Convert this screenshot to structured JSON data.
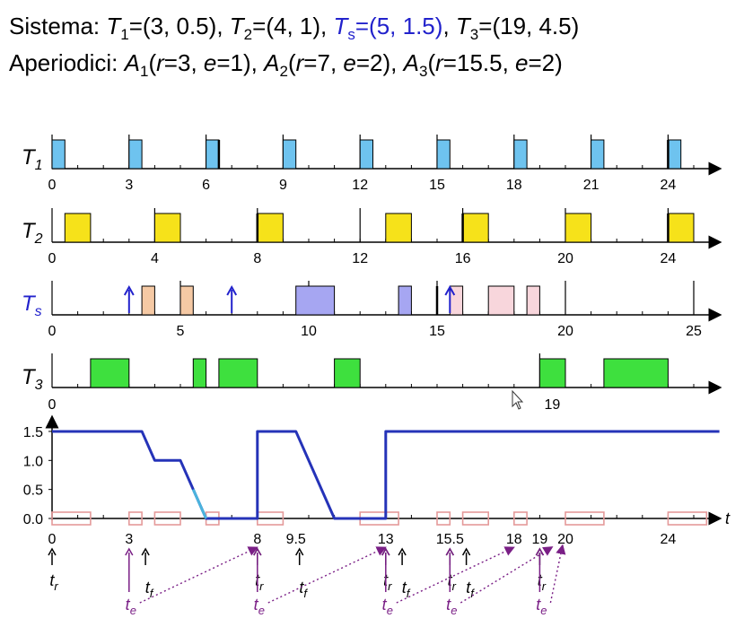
{
  "header": {
    "system_label": "Sistema:",
    "aperiodic_label": "Aperiodici:",
    "tasks": [
      {
        "name": "T",
        "sub": "1",
        "params": "=(3, 0.5)",
        "sep": ",",
        "highlight": false
      },
      {
        "name": "T",
        "sub": "2",
        "params": "=(4, 1)",
        "sep": ",",
        "highlight": false
      },
      {
        "name": "T",
        "sub": "s",
        "params": "=(5, 1.5)",
        "sep": ",",
        "highlight": true
      },
      {
        "name": "T",
        "sub": "3",
        "params": "=(19, 4.5)",
        "sep": "",
        "highlight": false
      }
    ],
    "aperiodics": [
      {
        "name": "A",
        "sub": "1",
        "r": "3",
        "e": "1"
      },
      {
        "name": "A",
        "sub": "2",
        "r": "7",
        "e": "2"
      },
      {
        "name": "A",
        "sub": "3",
        "r": "15.5",
        "e": "2"
      }
    ]
  },
  "colors": {
    "t1": "#6ec3ef",
    "t2": "#f6e21a",
    "ts_server": "#a6a6f2",
    "ts_aperiodic": "#f5c9a4",
    "ts_aperiodic2": "#f8d6dc",
    "t3": "#3ee03e",
    "capacity": "#2533b8",
    "capacity_alt": "#4ab3dd",
    "marker_box": "#e49a9a",
    "server_label": "#2222cc",
    "server_arrow": "#2222cc",
    "te": "#7a1f86"
  },
  "rows": [
    {
      "key": "t1",
      "label": "T",
      "sub": "1",
      "label_color": "#000",
      "ticks": [
        "0",
        "3",
        "6",
        "9",
        "12",
        "15",
        "18",
        "21",
        "24"
      ],
      "tick_times": [
        0,
        3,
        6,
        9,
        12,
        15,
        18,
        21,
        24
      ],
      "releases": [
        0,
        3,
        6,
        9,
        12,
        15,
        18,
        21,
        24
      ],
      "deadlines": [
        6.5,
        24
      ],
      "jobs": [
        [
          0,
          0.5
        ],
        [
          3,
          3.5
        ],
        [
          6,
          6.5
        ],
        [
          9,
          9.5
        ],
        [
          12,
          12.5
        ],
        [
          15,
          15.5
        ],
        [
          18,
          18.5
        ],
        [
          21,
          21.5
        ],
        [
          24,
          24.5
        ]
      ]
    },
    {
      "key": "t2",
      "label": "T",
      "sub": "2",
      "label_color": "#000",
      "ticks": [
        "0",
        "4",
        "8",
        "12",
        "16",
        "20",
        "24"
      ],
      "tick_times": [
        0,
        4,
        8,
        12,
        16,
        20,
        24
      ],
      "releases": [
        0,
        4,
        8,
        12,
        16,
        20,
        24
      ],
      "deadlines": [
        8,
        16,
        24
      ],
      "jobs": [
        [
          0.5,
          1.5
        ],
        [
          4,
          5
        ],
        [
          8,
          9
        ],
        [
          13,
          14
        ],
        [
          16,
          17
        ],
        [
          20,
          21
        ],
        [
          24,
          25
        ]
      ]
    },
    {
      "key": "ts",
      "label": "T",
      "sub": "s",
      "label_color": "#2222cc",
      "ticks": [
        "0",
        "5",
        "10",
        "15",
        "20",
        "25"
      ],
      "tick_times": [
        0,
        5,
        10,
        15,
        20,
        25
      ],
      "releases": [
        0,
        5,
        10,
        15,
        20,
        25
      ],
      "deadlines": [
        15
      ],
      "arrivals": [
        3,
        7,
        15.5
      ],
      "jobs": [
        {
          "s": 3.5,
          "e": 4,
          "c": "ts_aperiodic"
        },
        {
          "s": 5,
          "e": 5.5,
          "c": "ts_aperiodic"
        },
        {
          "s": 9.5,
          "e": 11,
          "c": "ts_server"
        },
        {
          "s": 13.5,
          "e": 14,
          "c": "ts_server"
        },
        {
          "s": 15.5,
          "e": 16,
          "c": "ts_aperiodic2"
        },
        {
          "s": 17,
          "e": 18,
          "c": "ts_aperiodic2"
        },
        {
          "s": 18.5,
          "e": 19,
          "c": "ts_aperiodic2"
        }
      ]
    },
    {
      "key": "t3",
      "label": "T",
      "sub": "3",
      "label_color": "#000",
      "ticks": [
        "0",
        "19"
      ],
      "tick_times": [
        0,
        19
      ],
      "releases": [
        0,
        19
      ],
      "deadlines": [],
      "jobs": [
        [
          1.5,
          3
        ],
        [
          5.5,
          6
        ],
        [
          6.5,
          8
        ],
        [
          11,
          12
        ],
        [
          19,
          20
        ],
        [
          21.5,
          24
        ]
      ]
    }
  ],
  "capacity": {
    "y_ticks": [
      "1.5",
      "1.0",
      "0.5",
      "0.0"
    ],
    "y_values": [
      1.5,
      1.0,
      0.5,
      0.0
    ],
    "x_ticks": [
      "0",
      "3",
      "8",
      "9.5",
      "13",
      "15.5",
      "18",
      "19",
      "20",
      "24"
    ],
    "x_tick_times": [
      0,
      3,
      8,
      9.5,
      13,
      15.5,
      18,
      19,
      20,
      24
    ],
    "axis_label": "t",
    "points": [
      [
        0,
        1.5
      ],
      [
        3.5,
        1.5
      ],
      [
        4,
        1.0
      ],
      [
        5,
        1.0
      ],
      [
        5.5,
        0.5
      ],
      [
        6,
        0
      ],
      [
        8,
        0
      ],
      [
        8,
        1.5
      ],
      [
        9.5,
        1.5
      ],
      [
        11,
        0
      ],
      [
        13,
        0
      ],
      [
        13,
        1.5
      ],
      [
        26,
        1.5
      ]
    ],
    "alt_segment": [
      [
        5.5,
        0.5
      ],
      [
        6,
        0
      ]
    ],
    "marker_boxes": [
      [
        0,
        1.5
      ],
      [
        3,
        3.5
      ],
      [
        4,
        5
      ],
      [
        6,
        6.5
      ],
      [
        8,
        9
      ],
      [
        12,
        13.5
      ],
      [
        15,
        15.5
      ],
      [
        16,
        17
      ],
      [
        18,
        18.5
      ],
      [
        20,
        21.5
      ],
      [
        24,
        25.5
      ]
    ]
  },
  "events": {
    "tr_label": "t",
    "tr_sub": "r",
    "tf_label": "t",
    "tf_sub": "f",
    "te_label": "t",
    "te_sub": "e",
    "tr_times": [
      0,
      8,
      13,
      15.5,
      19
    ],
    "tf_times": [
      3.5,
      9.5,
      13.5,
      16
    ],
    "te_times": [
      3,
      8,
      13,
      15.5,
      19
    ],
    "te_targets": [
      8,
      13,
      18,
      19.5,
      20
    ]
  }
}
